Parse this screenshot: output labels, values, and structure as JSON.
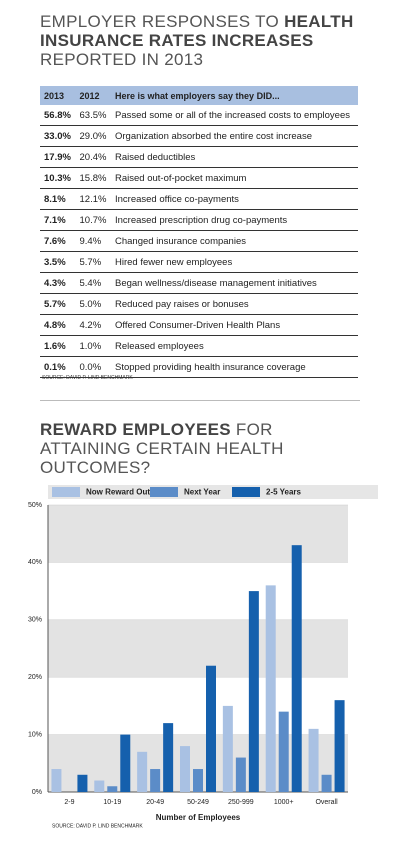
{
  "title": {
    "lead": "EMPLOYER RESPONSES TO",
    "emphasis": "HEALTH INSURANCE RATES INCREASES",
    "tail": "REPORTED IN 2013"
  },
  "table": {
    "header": [
      "2013",
      "2012",
      "Here is what employers say they DID..."
    ],
    "rows": [
      [
        "56.8%",
        "63.5%",
        "Passed some or all of the increased costs to employees"
      ],
      [
        "33.0%",
        "29.0%",
        "Organization absorbed the entire cost increase"
      ],
      [
        "17.9%",
        "20.4%",
        "Raised deductibles"
      ],
      [
        "10.3%",
        "15.8%",
        "Raised out-of-pocket maximum"
      ],
      [
        "8.1%",
        "12.1%",
        "Increased office co-payments"
      ],
      [
        "7.1%",
        "10.7%",
        "Increased prescription drug co-payments"
      ],
      [
        "7.6%",
        "9.4%",
        "Changed insurance companies"
      ],
      [
        "3.5%",
        "5.7%",
        "Hired fewer new employees"
      ],
      [
        "4.3%",
        "5.4%",
        "Began wellness/disease management initiatives"
      ],
      [
        "5.7%",
        "5.0%",
        "Reduced pay raises or bonuses"
      ],
      [
        "4.8%",
        "4.2%",
        "Offered Consumer-Driven Health Plans"
      ],
      [
        "1.6%",
        "1.0%",
        "Released employees"
      ],
      [
        "0.1%",
        "0.0%",
        "Stopped providing health insurance coverage"
      ]
    ],
    "source": "SOURCE: DAVID P. LIND BENCHMARK"
  },
  "chart_data": {
    "type": "bar",
    "title": {
      "emphasis": "REWARD EMPLOYEES",
      "rest": "FOR ATTAINING CERTAIN HEALTH OUTCOMES?"
    },
    "categories": [
      "2-9",
      "10-19",
      "20-49",
      "50-249",
      "250-999",
      "1000+",
      "Overall"
    ],
    "series": [
      {
        "name": "Now Reward Outcomes",
        "color": "#a9c1e3",
        "values": [
          4,
          2,
          7,
          8,
          15,
          36,
          11
        ]
      },
      {
        "name": "Next Year",
        "color": "#5b8cc8",
        "values": [
          0,
          1,
          4,
          4,
          6,
          14,
          3
        ]
      },
      {
        "name": "2-5 Years",
        "color": "#1560ad",
        "values": [
          3,
          10,
          12,
          22,
          35,
          43,
          16
        ]
      }
    ],
    "ylim": [
      0,
      50
    ],
    "yticks": [
      {
        "value": 0,
        "label": "0%"
      },
      {
        "value": 10,
        "label": "10%"
      },
      {
        "value": 20,
        "label": "20%"
      },
      {
        "value": 30,
        "label": "30%"
      },
      {
        "value": 40,
        "label": "40%"
      },
      {
        "value": 50,
        "label": "50%"
      }
    ],
    "x_label": "Number of Employees",
    "source": "SOURCE: DAVID P. LIND BENCHMARK",
    "grid": true
  }
}
